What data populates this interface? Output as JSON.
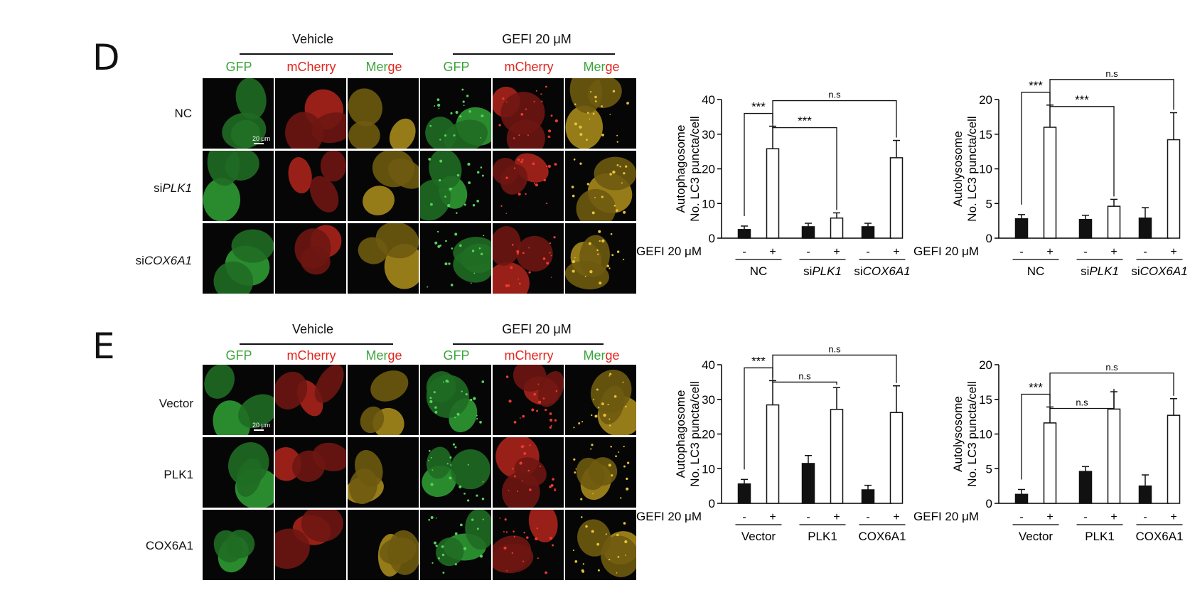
{
  "channels": [
    "GFP",
    "mCherry",
    "Merge"
  ],
  "merge_split": [
    "Mer",
    "ge"
  ],
  "scale_bar_label": "20 μm",
  "panels": [
    {
      "letter": "D",
      "group_labels": [
        "Vehicle",
        "GEFI 20 μM"
      ],
      "rows": [
        {
          "prefix": "",
          "gene": "NC"
        },
        {
          "prefix": "si",
          "gene": "PLK1"
        },
        {
          "prefix": "si",
          "gene": "COX6A1"
        }
      ]
    },
    {
      "letter": "E",
      "group_labels": [
        "Vehicle",
        "GEFI 20 μM"
      ],
      "rows": [
        {
          "prefix": "",
          "gene": "Vector"
        },
        {
          "prefix": "",
          "gene": "PLK1"
        },
        {
          "prefix": "",
          "gene": "COX6A1"
        }
      ]
    }
  ],
  "chart_data": [
    {
      "type": "bar",
      "ylabel": [
        "Autophagosome",
        "No. LC3 puncta/cell"
      ],
      "ylim": [
        0,
        40
      ],
      "yticks": [
        0,
        10,
        20,
        30,
        40
      ],
      "treatment_label": "GEFI 20 μM",
      "treatment_signs": [
        "-",
        "+"
      ],
      "groups": [
        {
          "prefix": "",
          "name": "NC"
        },
        {
          "prefix": "si",
          "name": "PLK1"
        },
        {
          "prefix": "si",
          "name": "COX6A1"
        }
      ],
      "series": [
        {
          "name": "-",
          "values": [
            2.5,
            3.3,
            3.3
          ],
          "errors": [
            1.0,
            1.0,
            1.0
          ]
        },
        {
          "name": "+",
          "values": [
            25.8,
            5.8,
            23.2
          ],
          "errors": [
            6.5,
            1.5,
            5.0
          ]
        }
      ],
      "significance": [
        {
          "label": "***",
          "from": [
            0,
            0
          ],
          "to": [
            0,
            1
          ]
        },
        {
          "label": "***",
          "from": [
            0,
            1
          ],
          "to": [
            1,
            1
          ]
        },
        {
          "label": "n.s",
          "from": [
            0,
            1
          ],
          "to": [
            2,
            1
          ]
        }
      ]
    },
    {
      "type": "bar",
      "ylabel": [
        "Autolysosome",
        "No. LC3 puncta/cell"
      ],
      "ylim": [
        0,
        20
      ],
      "yticks": [
        0,
        5,
        10,
        15,
        20
      ],
      "treatment_label": "GEFI 20 μM",
      "treatment_signs": [
        "-",
        "+"
      ],
      "groups": [
        {
          "prefix": "",
          "name": "NC"
        },
        {
          "prefix": "si",
          "name": "PLK1"
        },
        {
          "prefix": "si",
          "name": "COX6A1"
        }
      ],
      "series": [
        {
          "name": "-",
          "values": [
            2.8,
            2.7,
            2.9
          ],
          "errors": [
            0.6,
            0.6,
            1.5
          ]
        },
        {
          "name": "+",
          "values": [
            16.0,
            4.6,
            14.2
          ],
          "errors": [
            3.2,
            1.0,
            3.9
          ]
        }
      ],
      "significance": [
        {
          "label": "***",
          "from": [
            0,
            0
          ],
          "to": [
            0,
            1
          ]
        },
        {
          "label": "***",
          "from": [
            0,
            1
          ],
          "to": [
            1,
            1
          ]
        },
        {
          "label": "n.s",
          "from": [
            0,
            1
          ],
          "to": [
            2,
            1
          ]
        }
      ]
    },
    {
      "type": "bar",
      "ylabel": [
        "Autophagosome",
        "No. LC3 puncta/cell"
      ],
      "ylim": [
        0,
        40
      ],
      "yticks": [
        0,
        10,
        20,
        30,
        40
      ],
      "treatment_label": "GEFI 20 μM",
      "treatment_signs": [
        "-",
        "+"
      ],
      "groups": [
        {
          "prefix": "",
          "name": "Vector"
        },
        {
          "prefix": "",
          "name": "PLK1"
        },
        {
          "prefix": "",
          "name": "COX6A1"
        }
      ],
      "series": [
        {
          "name": "-",
          "values": [
            5.6,
            11.5,
            3.9
          ],
          "errors": [
            1.3,
            2.3,
            1.3
          ]
        },
        {
          "name": "+",
          "values": [
            28.4,
            27.1,
            26.2
          ],
          "errors": [
            7.0,
            6.3,
            7.7
          ]
        }
      ],
      "significance": [
        {
          "label": "***",
          "from": [
            0,
            0
          ],
          "to": [
            0,
            1
          ]
        },
        {
          "label": "n.s",
          "from": [
            0,
            1
          ],
          "to": [
            1,
            1
          ]
        },
        {
          "label": "n.s",
          "from": [
            0,
            1
          ],
          "to": [
            2,
            1
          ]
        }
      ]
    },
    {
      "type": "bar",
      "ylabel": [
        "Autolysosome",
        "No. LC3 puncta/cell"
      ],
      "ylim": [
        0,
        20
      ],
      "yticks": [
        0,
        5,
        10,
        15,
        20
      ],
      "treatment_label": "GEFI 20 μM",
      "treatment_signs": [
        "-",
        "+"
      ],
      "groups": [
        {
          "prefix": "",
          "name": "Vector"
        },
        {
          "prefix": "",
          "name": "PLK1"
        },
        {
          "prefix": "",
          "name": "COX6A1"
        }
      ],
      "series": [
        {
          "name": "-",
          "values": [
            1.3,
            4.6,
            2.5
          ],
          "errors": [
            0.7,
            0.7,
            1.6
          ]
        },
        {
          "name": "+",
          "values": [
            11.6,
            13.6,
            12.7
          ],
          "errors": [
            2.3,
            2.5,
            2.4
          ]
        }
      ],
      "significance": [
        {
          "label": "***",
          "from": [
            0,
            0
          ],
          "to": [
            0,
            1
          ]
        },
        {
          "label": "n.s",
          "from": [
            0,
            1
          ],
          "to": [
            1,
            1
          ]
        },
        {
          "label": "n.s",
          "from": [
            0,
            1
          ],
          "to": [
            2,
            1
          ]
        }
      ]
    }
  ]
}
